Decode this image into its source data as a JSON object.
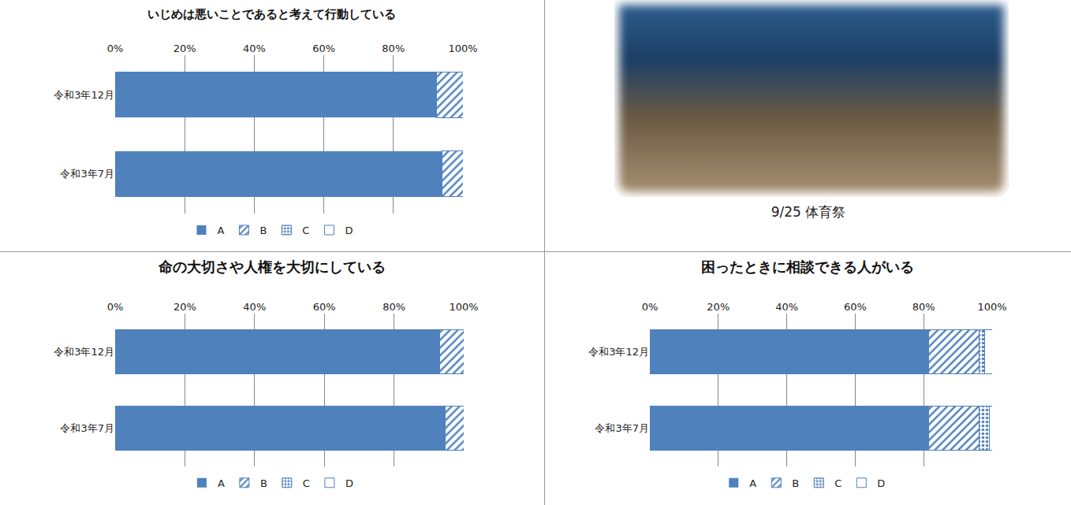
{
  "chart_data": [
    {
      "type": "bar",
      "orientation": "horizontal",
      "stacked": true,
      "grid": true,
      "legend": "bottom",
      "title": "いじめは悪いことであると考えて行動している",
      "categories": [
        "令和3年12月",
        "令和3年7月"
      ],
      "xlim": [
        0,
        100
      ],
      "xticks": [
        {
          "value": 0,
          "label": "0%"
        },
        {
          "value": 20,
          "label": "20%"
        },
        {
          "value": 40,
          "label": "40%"
        },
        {
          "value": 60,
          "label": "60%"
        },
        {
          "value": 80,
          "label": "80%"
        },
        {
          "value": 100,
          "label": "100%"
        }
      ],
      "series": [
        {
          "name": "A",
          "color": "#4f81bd",
          "marker": "solid",
          "values": [
            92.5,
            94.1
          ]
        },
        {
          "name": "B",
          "color": "#4f81bd",
          "marker": "hatch",
          "values": [
            7.5,
            5.9
          ]
        },
        {
          "name": "C",
          "color": "#4f81bd",
          "marker": "dots",
          "values": [
            0,
            0
          ]
        },
        {
          "name": "D",
          "color": "#4f81bd",
          "marker": "empty",
          "values": [
            0,
            0
          ]
        }
      ]
    },
    {
      "type": "bar",
      "orientation": "horizontal",
      "stacked": true,
      "grid": true,
      "legend": "bottom",
      "title": "命の大切さや人権を大切にしている",
      "categories": [
        "令和3年12月",
        "令和3年7月"
      ],
      "xlim": [
        0,
        100
      ],
      "xticks": [
        {
          "value": 0,
          "label": "0%"
        },
        {
          "value": 20,
          "label": "20%"
        },
        {
          "value": 40,
          "label": "40%"
        },
        {
          "value": 60,
          "label": "60%"
        },
        {
          "value": 80,
          "label": "80%"
        },
        {
          "value": 100,
          "label": "100%"
        }
      ],
      "series": [
        {
          "name": "A",
          "color": "#4f81bd",
          "marker": "solid",
          "values": [
            93.0,
            94.6
          ]
        },
        {
          "name": "B",
          "color": "#4f81bd",
          "marker": "hatch",
          "values": [
            7.0,
            5.4
          ]
        },
        {
          "name": "C",
          "color": "#4f81bd",
          "marker": "dots",
          "values": [
            0,
            0
          ]
        },
        {
          "name": "D",
          "color": "#4f81bd",
          "marker": "empty",
          "values": [
            0,
            0
          ]
        }
      ]
    },
    {
      "type": "bar",
      "orientation": "horizontal",
      "stacked": true,
      "grid": true,
      "legend": "bottom",
      "title": "困ったときに相談できる人がいる",
      "categories": [
        "令和3年12月",
        "令和3年7月"
      ],
      "xlim": [
        0,
        100
      ],
      "xticks": [
        {
          "value": 0,
          "label": "0%"
        },
        {
          "value": 20,
          "label": "20%"
        },
        {
          "value": 40,
          "label": "40%"
        },
        {
          "value": 60,
          "label": "60%"
        },
        {
          "value": 80,
          "label": "80%"
        },
        {
          "value": 100,
          "label": "100%"
        }
      ],
      "series": [
        {
          "name": "A",
          "color": "#4f81bd",
          "marker": "solid",
          "values": [
            81.4,
            81.4
          ]
        },
        {
          "name": "B",
          "color": "#4f81bd",
          "marker": "hatch",
          "values": [
            14.9,
            14.7
          ]
        },
        {
          "name": "C",
          "color": "#4f81bd",
          "marker": "dots",
          "values": [
            1.4,
            3.0
          ]
        },
        {
          "name": "D",
          "color": "#4f81bd",
          "marker": "empty",
          "values": [
            2.3,
            0.9
          ]
        }
      ]
    }
  ],
  "photo": {
    "caption": "9/25 体育祭"
  }
}
